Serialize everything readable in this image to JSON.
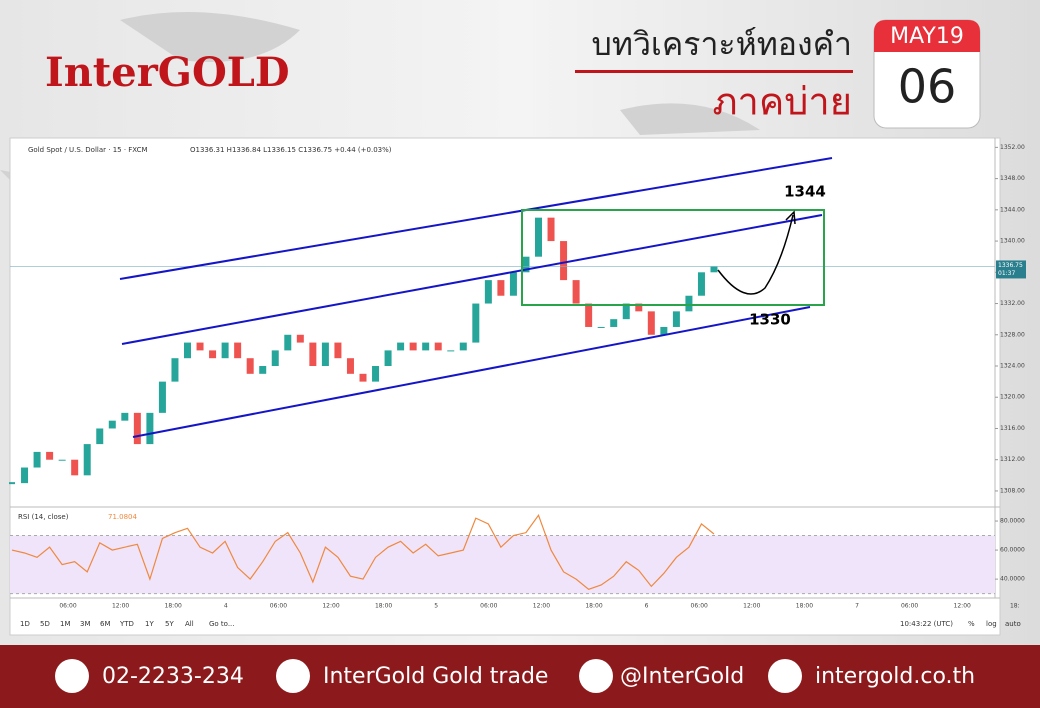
{
  "header": {
    "brand": "InterGOLD",
    "title": "บทวิเคราะห์ทองคำ",
    "subtitle": "ภาคบ่าย",
    "calendar_month": "MAY19",
    "calendar_day": "06"
  },
  "chart_data": [
    {
      "type": "candlestick",
      "title": "Gold Spot / U.S. Dollar · 15 · FXCM",
      "ohlc": "O1336.31 H1336.84 L1336.15 C1336.75 +0.44 (+0.03%)",
      "values": [
        1309,
        1311,
        1313,
        1312,
        1312,
        1310,
        1314,
        1316,
        1317,
        1318,
        1314,
        1318,
        1322,
        1325,
        1327,
        1326,
        1325,
        1327,
        1325,
        1323,
        1324,
        1326,
        1328,
        1327,
        1324,
        1327,
        1325,
        1323,
        1322,
        1324,
        1326,
        1327,
        1326,
        1327,
        1326,
        1326,
        1327,
        1332,
        1335,
        1333,
        1336,
        1338,
        1343,
        1340,
        1335,
        1332,
        1329,
        1329,
        1330,
        1332,
        1331,
        1328,
        1329,
        1331,
        1333,
        1336,
        1336.75
      ],
      "up_color": "#26a69a",
      "down_color": "#ef5350",
      "ylim": [
        1306.2,
        1353.2
      ],
      "yticks": [
        {
          "value": 1352,
          "label": "1352.00"
        },
        {
          "value": 1348,
          "label": "1348.00"
        },
        {
          "value": 1344,
          "label": "1344.00"
        },
        {
          "value": 1340,
          "label": "1340.00"
        },
        {
          "value": 1336,
          "label": "1336.00"
        },
        {
          "value": 1332,
          "label": "1332.00"
        },
        {
          "value": 1328,
          "label": "1328.00"
        },
        {
          "value": 1324,
          "label": "1324.00"
        },
        {
          "value": 1320,
          "label": "1320.00"
        },
        {
          "value": 1316,
          "label": "1316.00"
        },
        {
          "value": 1312,
          "label": "1312.00"
        },
        {
          "value": 1308,
          "label": "1308.00"
        }
      ],
      "last_price": {
        "value": 1336.75,
        "label": "1336.75"
      },
      "countdown": "01:37",
      "annotations": [
        "1344",
        "1330"
      ]
    },
    {
      "type": "line",
      "title": "RSI (14, close)",
      "value_label": "71.0804",
      "color": "#f0883e",
      "values": [
        60,
        58,
        55,
        62,
        50,
        52,
        45,
        65,
        60,
        62,
        64,
        40,
        68,
        72,
        75,
        62,
        58,
        66,
        48,
        40,
        52,
        66,
        72,
        58,
        38,
        62,
        55,
        42,
        40,
        55,
        62,
        66,
        58,
        64,
        56,
        58,
        60,
        82,
        78,
        62,
        70,
        72,
        84,
        60,
        45,
        40,
        33,
        36,
        42,
        52,
        46,
        35,
        44,
        55,
        62,
        78,
        71.0804
      ],
      "ylim": [
        27,
        87.6
      ],
      "band": [
        30,
        70
      ],
      "yticks": [
        {
          "value": 80,
          "label": "80.0000"
        },
        {
          "value": 60,
          "label": "60.0000"
        },
        {
          "value": 40,
          "label": "40.0000"
        }
      ]
    }
  ],
  "time_axis": [
    "06:00",
    "12:00",
    "18:00",
    "4",
    "06:00",
    "12:00",
    "18:00",
    "5",
    "06:00",
    "12:00",
    "18:00",
    "6",
    "06:00",
    "12:00",
    "18:00",
    "7",
    "06:00",
    "12:00",
    "18:"
  ],
  "toolbar": [
    "1D",
    "5D",
    "1M",
    "3M",
    "6M",
    "YTD",
    "1Y",
    "5Y",
    "All",
    "Go to..."
  ],
  "toolbar_right": [
    "10:43:22 (UTC)",
    "%",
    "log",
    "auto"
  ],
  "footer": [
    "02-2233-234",
    "InterGold Gold trade",
    "@InterGold",
    "intergold.co.th"
  ]
}
